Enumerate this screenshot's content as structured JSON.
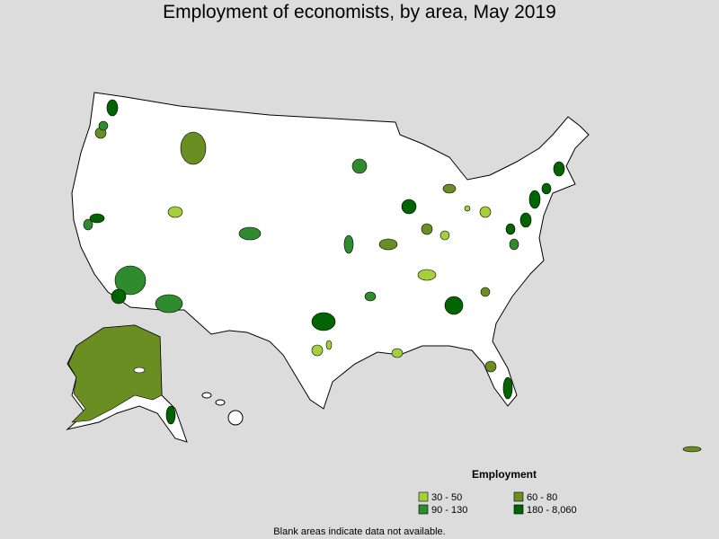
{
  "title": "Employment of economists, by area, May 2019",
  "legend": {
    "title": "Employment",
    "items": [
      {
        "label": "30 - 50",
        "color": "#a6cf3c"
      },
      {
        "label": "60 - 80",
        "color": "#6b8e23"
      },
      {
        "label": "90 - 130",
        "color": "#2e8b2e"
      },
      {
        "label": "180 - 8,060",
        "color": "#006400"
      }
    ]
  },
  "note": "Blank areas indicate data not available."
}
